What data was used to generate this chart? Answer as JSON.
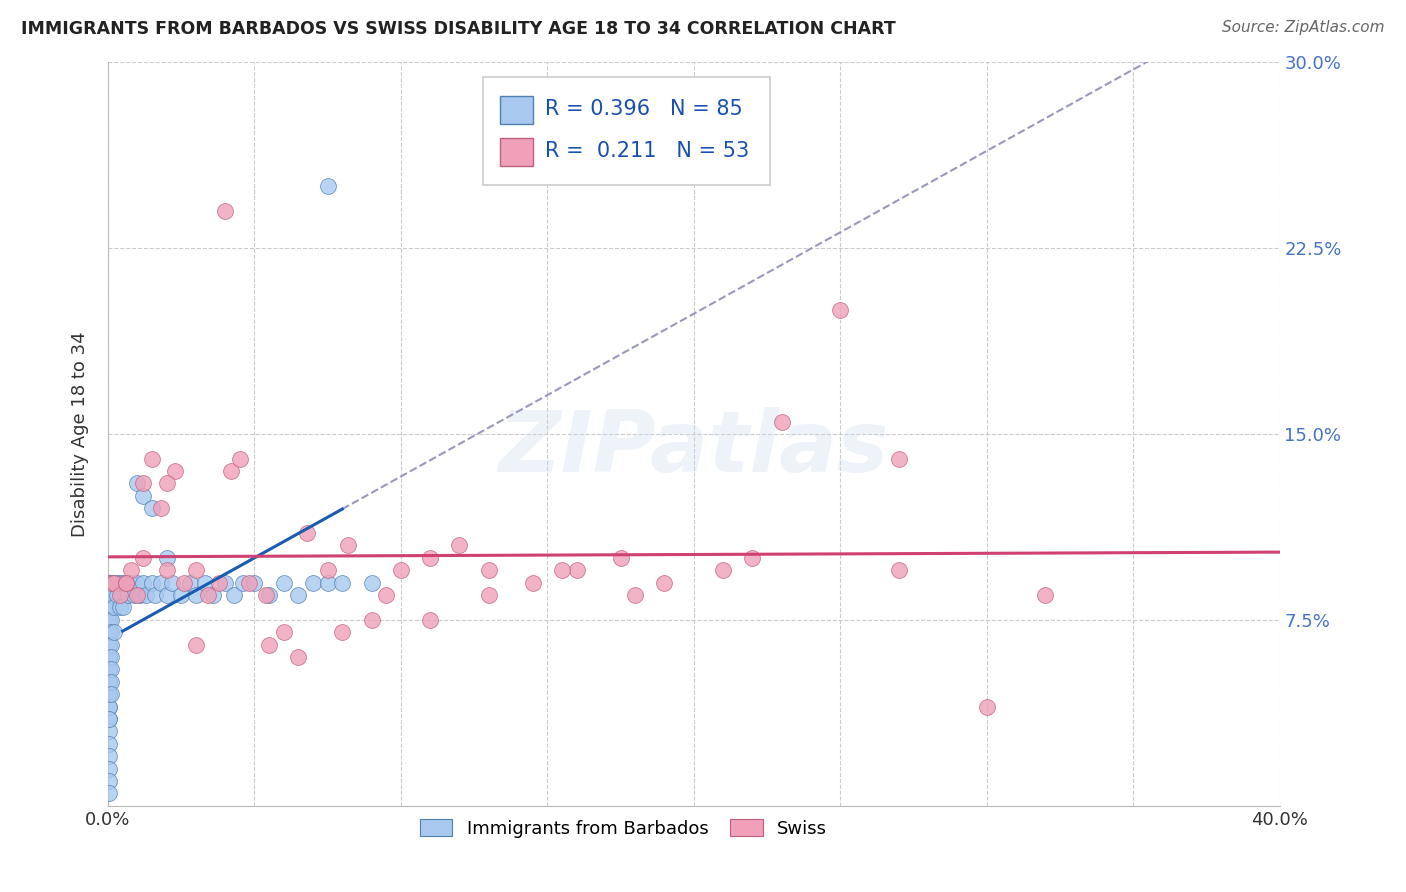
{
  "title": "IMMIGRANTS FROM BARBADOS VS SWISS DISABILITY AGE 18 TO 34 CORRELATION CHART",
  "source": "Source: ZipAtlas.com",
  "ylabel_label": "Disability Age 18 to 34",
  "xlim": [
    0.0,
    0.4
  ],
  "ylim": [
    0.0,
    0.3
  ],
  "xticks": [
    0.0,
    0.05,
    0.1,
    0.15,
    0.2,
    0.25,
    0.3,
    0.35,
    0.4
  ],
  "yticks": [
    0.0,
    0.075,
    0.15,
    0.225,
    0.3
  ],
  "barbados_color": "#a8c8f0",
  "barbados_edge": "#5080b0",
  "swiss_color": "#f0a0b8",
  "swiss_edge": "#c06080",
  "trendline_barbados_color": "#1a5cb0",
  "trendline_swiss_color": "#d04070",
  "dashed_line_color": "#9999bb",
  "R_barbados": 0.396,
  "N_barbados": 85,
  "R_swiss": 0.211,
  "N_swiss": 53,
  "legend_label_barbados": "Immigrants from Barbados",
  "legend_label_swiss": "Swiss",
  "watermark": "ZIPatlas",
  "barbados_x": [
    0.0005,
    0.0005,
    0.0005,
    0.0005,
    0.0005,
    0.0005,
    0.0005,
    0.0005,
    0.0005,
    0.0005,
    0.0005,
    0.0005,
    0.0005,
    0.0005,
    0.0005,
    0.0005,
    0.0005,
    0.0005,
    0.0005,
    0.0005,
    0.0005,
    0.0005,
    0.0005,
    0.0005,
    0.0005,
    0.0005,
    0.0005,
    0.0005,
    0.0005,
    0.0005,
    0.001,
    0.001,
    0.001,
    0.001,
    0.001,
    0.001,
    0.001,
    0.001,
    0.001,
    0.001,
    0.0015,
    0.0015,
    0.002,
    0.002,
    0.002,
    0.003,
    0.003,
    0.004,
    0.004,
    0.005,
    0.005,
    0.006,
    0.007,
    0.008,
    0.009,
    0.01,
    0.011,
    0.012,
    0.013,
    0.015,
    0.016,
    0.018,
    0.02,
    0.022,
    0.025,
    0.028,
    0.03,
    0.033,
    0.036,
    0.04,
    0.043,
    0.046,
    0.05,
    0.055,
    0.06,
    0.065,
    0.07,
    0.075,
    0.08,
    0.09,
    0.01,
    0.012,
    0.015,
    0.02,
    0.075
  ],
  "barbados_y": [
    0.09,
    0.085,
    0.08,
    0.075,
    0.07,
    0.065,
    0.06,
    0.055,
    0.05,
    0.045,
    0.04,
    0.035,
    0.03,
    0.025,
    0.02,
    0.015,
    0.01,
    0.005,
    0.09,
    0.085,
    0.08,
    0.075,
    0.07,
    0.065,
    0.06,
    0.055,
    0.05,
    0.045,
    0.04,
    0.035,
    0.09,
    0.085,
    0.08,
    0.075,
    0.07,
    0.065,
    0.06,
    0.055,
    0.05,
    0.045,
    0.09,
    0.085,
    0.09,
    0.08,
    0.07,
    0.09,
    0.085,
    0.09,
    0.08,
    0.09,
    0.08,
    0.09,
    0.085,
    0.09,
    0.085,
    0.09,
    0.085,
    0.09,
    0.085,
    0.09,
    0.085,
    0.09,
    0.085,
    0.09,
    0.085,
    0.09,
    0.085,
    0.09,
    0.085,
    0.09,
    0.085,
    0.09,
    0.09,
    0.085,
    0.09,
    0.085,
    0.09,
    0.09,
    0.09,
    0.09,
    0.13,
    0.125,
    0.12,
    0.1,
    0.25
  ],
  "swiss_x": [
    0.001,
    0.002,
    0.004,
    0.006,
    0.008,
    0.01,
    0.012,
    0.015,
    0.018,
    0.02,
    0.023,
    0.026,
    0.03,
    0.034,
    0.038,
    0.042,
    0.048,
    0.054,
    0.06,
    0.068,
    0.075,
    0.082,
    0.09,
    0.1,
    0.11,
    0.12,
    0.13,
    0.145,
    0.16,
    0.175,
    0.19,
    0.21,
    0.23,
    0.25,
    0.27,
    0.3,
    0.006,
    0.012,
    0.02,
    0.03,
    0.045,
    0.055,
    0.065,
    0.08,
    0.095,
    0.11,
    0.13,
    0.155,
    0.18,
    0.22,
    0.27,
    0.32,
    0.04
  ],
  "swiss_y": [
    0.09,
    0.09,
    0.085,
    0.09,
    0.095,
    0.085,
    0.13,
    0.14,
    0.12,
    0.095,
    0.135,
    0.09,
    0.095,
    0.085,
    0.09,
    0.135,
    0.09,
    0.085,
    0.07,
    0.11,
    0.095,
    0.105,
    0.075,
    0.095,
    0.1,
    0.105,
    0.095,
    0.09,
    0.095,
    0.1,
    0.09,
    0.095,
    0.155,
    0.2,
    0.14,
    0.04,
    0.09,
    0.1,
    0.13,
    0.065,
    0.14,
    0.065,
    0.06,
    0.07,
    0.085,
    0.075,
    0.085,
    0.095,
    0.085,
    0.1,
    0.095,
    0.085,
    0.24
  ]
}
